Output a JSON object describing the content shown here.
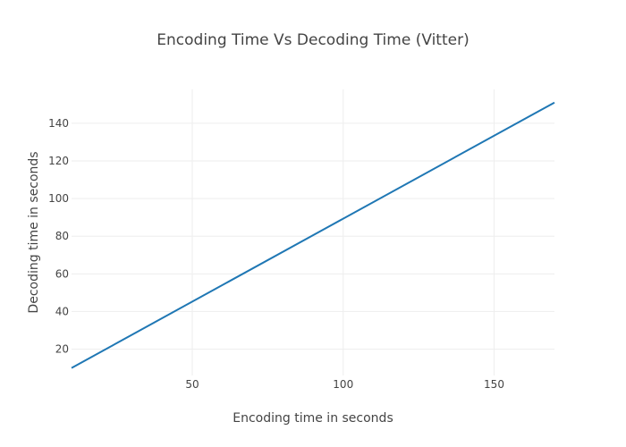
{
  "chart_data": {
    "type": "line",
    "title": "Encoding Time Vs Decoding Time (Vitter)",
    "xlabel": "Encoding time in seconds",
    "ylabel": "Decoding time in seconds",
    "xlim": [
      10,
      170
    ],
    "ylim": [
      6,
      158
    ],
    "xticks": [
      50,
      100,
      150
    ],
    "yticks": [
      20,
      40,
      60,
      80,
      100,
      120,
      140
    ],
    "grid": true,
    "series": [
      {
        "color": "#1f77b4",
        "x": [
          10,
          170
        ],
        "y": [
          10,
          151
        ]
      }
    ]
  }
}
